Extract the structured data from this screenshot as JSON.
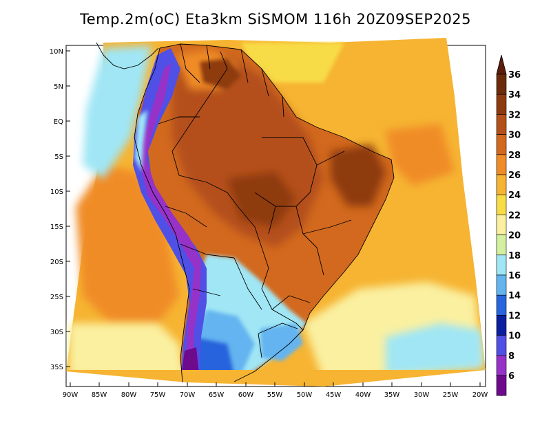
{
  "title": "Temp.2m(oC) Eta3km SiSMOM 116h 20Z09SEP2025",
  "map": {
    "variable": "Temp.2m(oC)",
    "model": "Eta3km SiSMOM",
    "forecast_hour": "116h",
    "valid_time": "20Z09SEP2025",
    "lat_ticks": [
      "10N",
      "5N",
      "EQ",
      "5S",
      "10S",
      "15S",
      "20S",
      "25S",
      "30S",
      "35S"
    ],
    "lon_ticks": [
      "90W",
      "85W",
      "80W",
      "75W",
      "70W",
      "65W",
      "60W",
      "55W",
      "50W",
      "45W",
      "40W",
      "35W",
      "30W",
      "25W",
      "20W"
    ]
  },
  "colorbar": {
    "labels": [
      "36",
      "34",
      "32",
      "30",
      "28",
      "26",
      "24",
      "22",
      "20",
      "18",
      "16",
      "14",
      "12",
      "10",
      "8",
      "6"
    ],
    "colors": [
      "#6b2c0c",
      "#8e3a10",
      "#b4501a",
      "#d2691e",
      "#f08c28",
      "#f6b432",
      "#f8dc46",
      "#faf0a0",
      "#d2f0a0",
      "#a0e6f5",
      "#64b4f0",
      "#2864dc",
      "#0a1ea0",
      "#5050e6",
      "#9632c8",
      "#6e0a8c"
    ],
    "min_color": "#4b0a6e",
    "max_color": "#5a1e0a"
  }
}
